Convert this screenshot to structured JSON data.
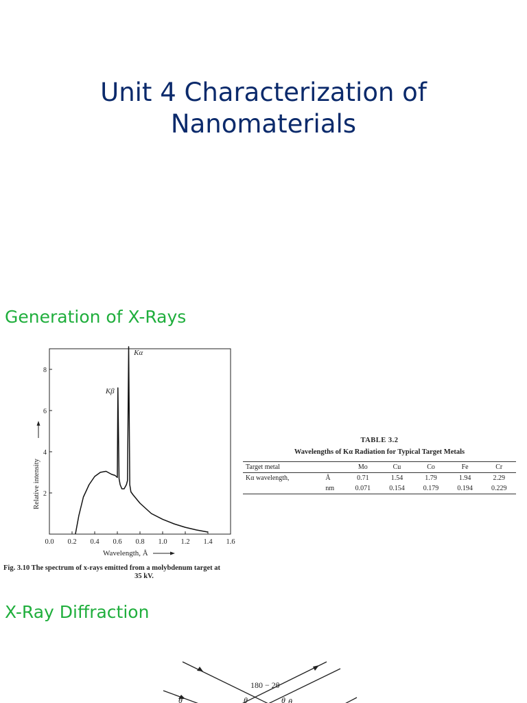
{
  "slide": {
    "title_line1": "Unit 4 Characterization of",
    "title_line2": "Nanomaterials"
  },
  "sections": [
    {
      "heading": "Generation of X-Rays"
    },
    {
      "heading": "X-Ray Diffraction"
    }
  ],
  "figure": {
    "caption_line1": "Fig. 3.10   The spectrum of x-rays emitted from a molybdenum target at",
    "caption_line2": "35 kV.",
    "y_ticks": [
      "2",
      "4",
      "6",
      "8"
    ],
    "x_ticks": [
      "0.0",
      "0.2",
      "0.4",
      "0.6",
      "0.8",
      "1.0",
      "1.2",
      "1.4",
      "1.6"
    ],
    "ylabel": "Relative intensity",
    "xlabel": "Wavelength, Å",
    "peak_labels": [
      "Kα",
      "Kβ"
    ]
  },
  "chart_data": {
    "type": "line",
    "title": "",
    "xlabel": "Wavelength, Å",
    "ylabel": "Relative intensity",
    "xlim": [
      0.0,
      1.6
    ],
    "ylim": [
      0,
      9
    ],
    "grid": false,
    "series": [
      {
        "x": [
          0.23,
          0.26,
          0.3,
          0.35,
          0.4,
          0.45,
          0.5,
          0.55,
          0.58,
          0.6,
          0.605,
          0.615,
          0.625,
          0.64,
          0.66,
          0.68,
          0.69,
          0.7,
          0.71,
          0.72,
          0.74,
          0.8,
          0.9,
          1.0,
          1.1,
          1.2,
          1.3,
          1.4
        ],
        "y": [
          0.0,
          0.9,
          1.8,
          2.4,
          2.8,
          3.0,
          3.05,
          2.9,
          2.85,
          2.75,
          7.1,
          2.7,
          2.4,
          2.2,
          2.2,
          2.4,
          2.6,
          9.1,
          2.4,
          2.05,
          1.9,
          1.5,
          1.0,
          0.72,
          0.5,
          0.33,
          0.2,
          0.1
        ]
      }
    ],
    "annotations": [
      {
        "text": "Kα",
        "x": 0.71,
        "y": 9.1
      },
      {
        "text": "Kβ",
        "x": 0.605,
        "y": 7.1
      }
    ]
  },
  "table": {
    "number": "TABLE 3.2",
    "title": "Wavelengths of Kα Radiation for Typical Target Metals",
    "header": [
      "Target metal",
      "",
      "Mo",
      "Cu",
      "Co",
      "Fe",
      "Cr"
    ],
    "rows": [
      [
        "Kα wavelength,",
        "Å",
        "0.71",
        "1.54",
        "1.79",
        "1.94",
        "2.29"
      ],
      [
        "",
        "nm",
        "0.071",
        "0.154",
        "0.179",
        "0.194",
        "0.229"
      ]
    ]
  },
  "diffraction": {
    "angle_label": "180 − 2θ",
    "theta_labels": [
      "θ",
      "θ",
      "θ",
      "θ"
    ]
  }
}
